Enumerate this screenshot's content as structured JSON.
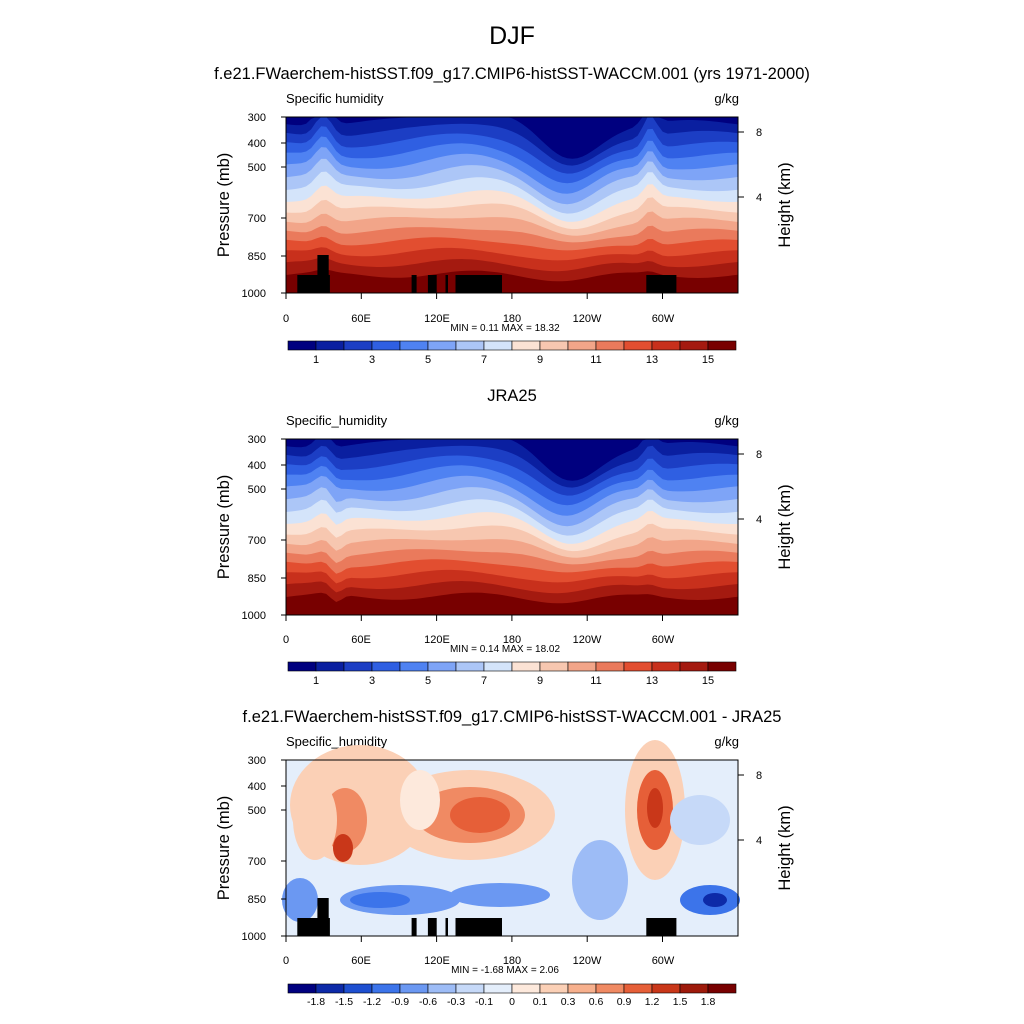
{
  "figure": {
    "title": "DJF"
  },
  "colors": {
    "seq_palette": [
      "#00007f",
      "#0a1fa0",
      "#1c3ec4",
      "#2f5fe2",
      "#4f82f2",
      "#7ea4f7",
      "#acc6f7",
      "#d4e4fa",
      "#fbe2d4",
      "#f7c7b0",
      "#f2a589",
      "#ea7a5c",
      "#e24e30",
      "#c8301c",
      "#a41a10",
      "#780000"
    ],
    "diff_palette": [
      "#00007f",
      "#0d2aa8",
      "#1e4fd0",
      "#3c74ea",
      "#6b98f2",
      "#9dbcf6",
      "#c6d9f8",
      "#e4eefb",
      "#fde9dc",
      "#fbd0b6",
      "#f7b08d",
      "#f08a63",
      "#e65f38",
      "#c93719",
      "#9e1a0b",
      "#780000"
    ],
    "terrain": "#000000"
  },
  "chart_data": [
    {
      "type": "heatmap",
      "title": "f.e21.FWaerchem-histSST.f09_g17.CMIP6-histSST-WACCM.001 (yrs 1971-2000)",
      "left_label": "Specific humidity",
      "units": "g/kg",
      "ylabel": "Pressure (mb)",
      "y2label": "Height (km)",
      "x_ticks": [
        "0",
        "60E",
        "120E",
        "180",
        "120W",
        "60W"
      ],
      "y_ticks": [
        "300",
        "400",
        "500",
        "700",
        "850",
        "1000"
      ],
      "y2_ticks": [
        "8",
        "4"
      ],
      "stats": "MIN =   0.11  MAX =   18.32",
      "colorbar_labels": [
        "1",
        "3",
        "5",
        "7",
        "9",
        "11",
        "13",
        "15"
      ],
      "min": 0.11,
      "max": 18.32
    },
    {
      "type": "heatmap",
      "title": "JRA25",
      "left_label": "Specific_humidity",
      "units": "g/kg",
      "ylabel": "Pressure (mb)",
      "y2label": "Height (km)",
      "x_ticks": [
        "0",
        "60E",
        "120E",
        "180",
        "120W",
        "60W"
      ],
      "y_ticks": [
        "300",
        "400",
        "500",
        "700",
        "850",
        "1000"
      ],
      "y2_ticks": [
        "8",
        "4"
      ],
      "stats": "MIN =   0.14  MAX =   18.02",
      "colorbar_labels": [
        "1",
        "3",
        "5",
        "7",
        "9",
        "11",
        "13",
        "15"
      ],
      "min": 0.14,
      "max": 18.02
    },
    {
      "type": "heatmap",
      "title": "f.e21.FWaerchem-histSST.f09_g17.CMIP6-histSST-WACCM.001 - JRA25",
      "left_label": "Specific_humidity",
      "units": "g/kg",
      "ylabel": "Pressure (mb)",
      "y2label": "Height (km)",
      "x_ticks": [
        "0",
        "60E",
        "120E",
        "180",
        "120W",
        "60W"
      ],
      "y_ticks": [
        "300",
        "400",
        "500",
        "700",
        "850",
        "1000"
      ],
      "y2_ticks": [
        "8",
        "4"
      ],
      "stats": "MIN =  -1.68  MAX =   2.06",
      "colorbar_labels": [
        "-1.8",
        "-1.5",
        "-1.2",
        "-0.9",
        "-0.6",
        "-0.3",
        "-0.1",
        "0",
        "0.1",
        "0.3",
        "0.6",
        "0.9",
        "1.2",
        "1.5",
        "1.8"
      ],
      "min": -1.68,
      "max": 2.06
    }
  ]
}
